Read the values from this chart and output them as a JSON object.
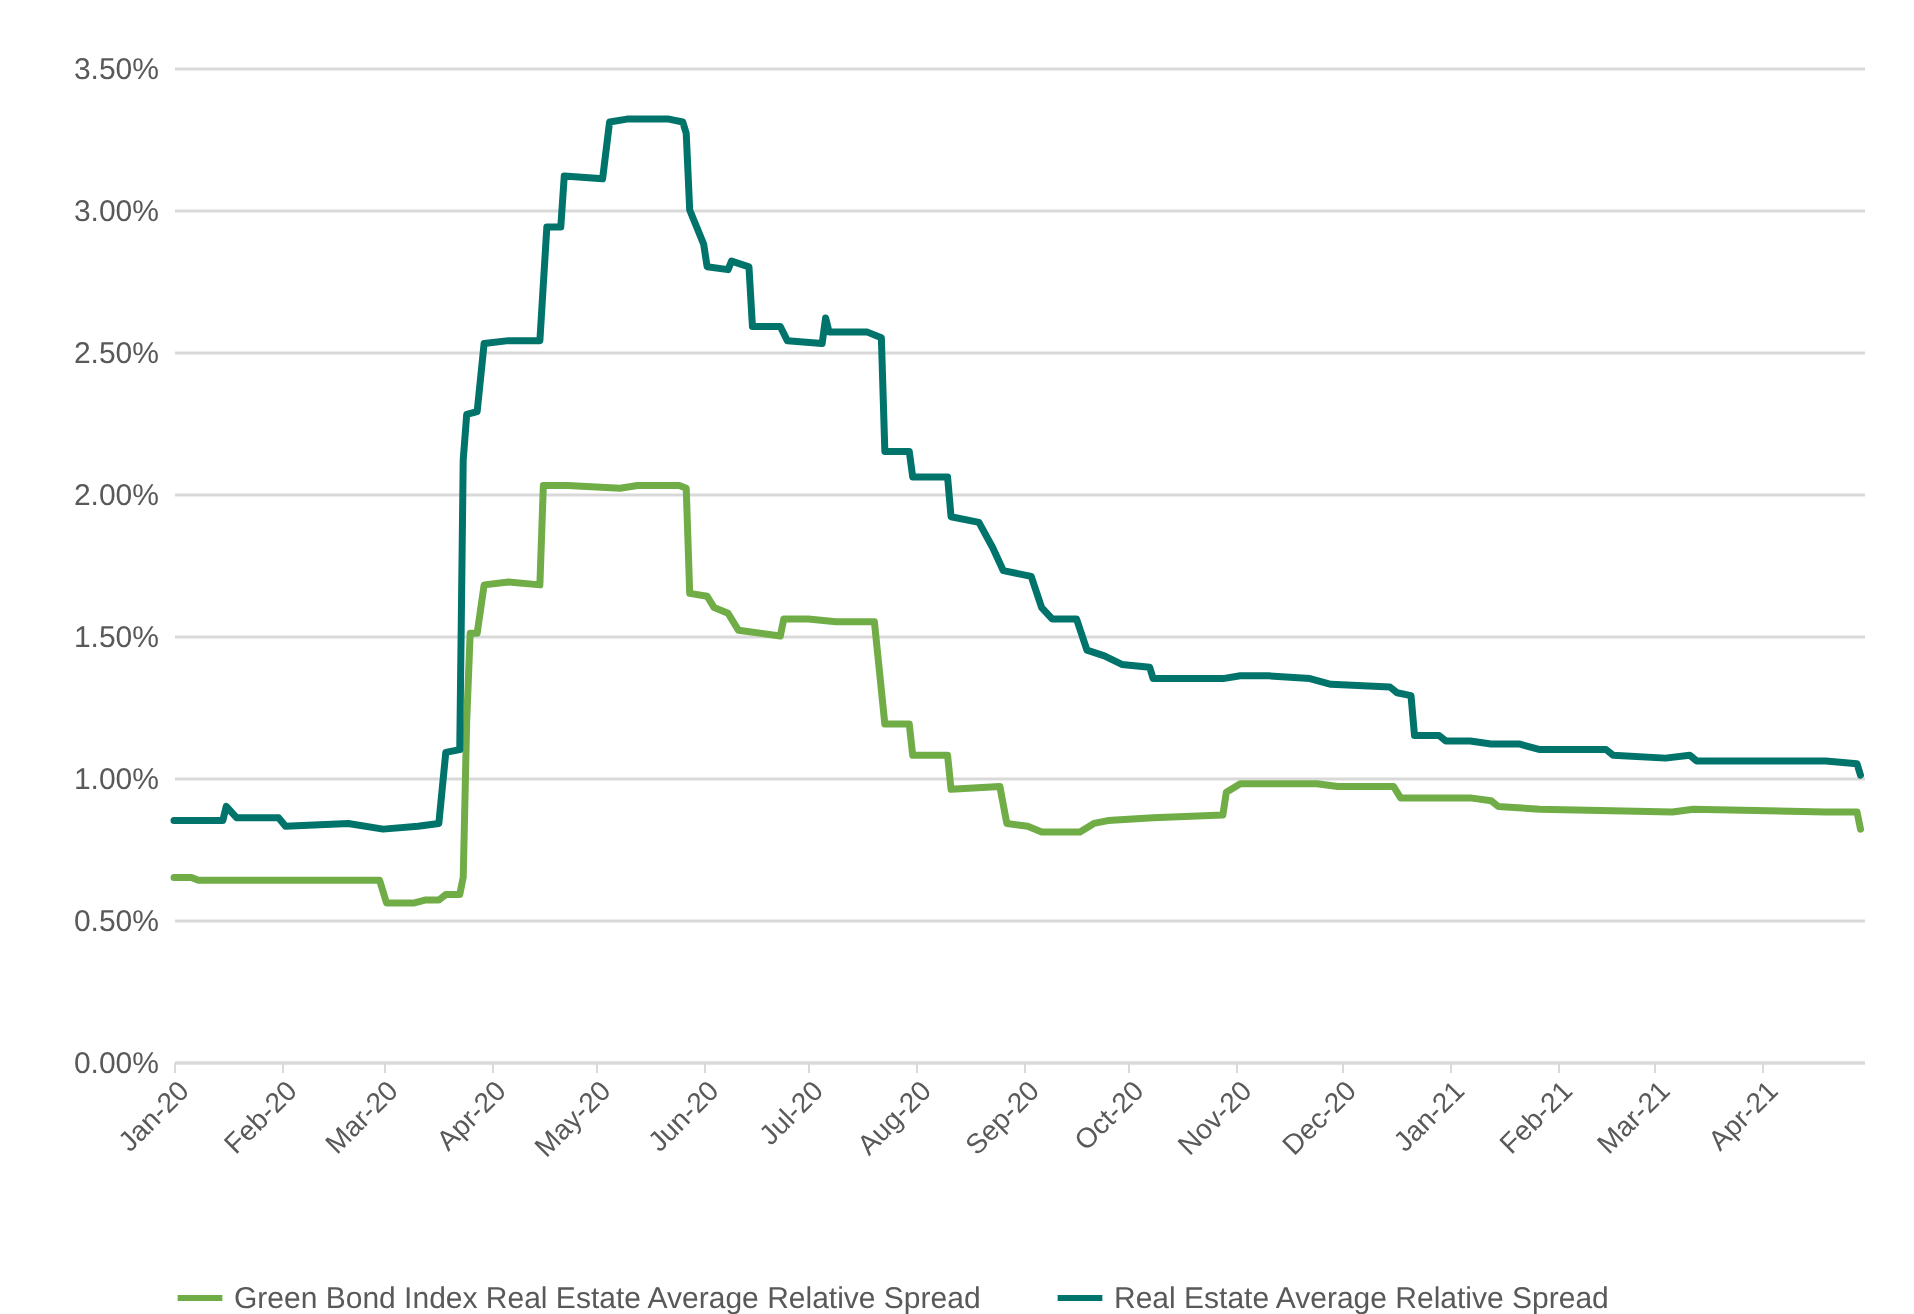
{
  "chart_data": {
    "type": "line",
    "xlim": [
      "2020-01-01",
      "2021-04-30"
    ],
    "xticks": [
      {
        "value": "2020-01-01",
        "label": "Jan-20"
      },
      {
        "value": "2020-02-01",
        "label": "Feb-20"
      },
      {
        "value": "2020-03-01",
        "label": "Mar-20"
      },
      {
        "value": "2020-04-01",
        "label": "Apr-20"
      },
      {
        "value": "2020-05-01",
        "label": "May-20"
      },
      {
        "value": "2020-06-01",
        "label": "Jun-20"
      },
      {
        "value": "2020-07-01",
        "label": "Jul-20"
      },
      {
        "value": "2020-08-01",
        "label": "Aug-20"
      },
      {
        "value": "2020-09-01",
        "label": "Sep-20"
      },
      {
        "value": "2020-10-01",
        "label": "Oct-20"
      },
      {
        "value": "2020-11-01",
        "label": "Nov-20"
      },
      {
        "value": "2020-12-01",
        "label": "Dec-20"
      },
      {
        "value": "2021-01-01",
        "label": "Jan-21"
      },
      {
        "value": "2021-02-01",
        "label": "Feb-21"
      },
      {
        "value": "2021-03-01",
        "label": "Mar-21"
      },
      {
        "value": "2021-04-01",
        "label": "Apr-21"
      }
    ],
    "ylim": [
      0,
      3.5
    ],
    "yticks": [
      {
        "value": 0,
        "label": "0.00%"
      },
      {
        "value": 0.5,
        "label": "0.50%"
      },
      {
        "value": 1,
        "label": "1.00%"
      },
      {
        "value": 1.5,
        "label": "1.50%"
      },
      {
        "value": 2,
        "label": "2.00%"
      },
      {
        "value": 2.5,
        "label": "2.50%"
      },
      {
        "value": 3,
        "label": "3.00%"
      },
      {
        "value": 3.5,
        "label": "3.50%"
      }
    ],
    "grid": "y",
    "legend": "bottom",
    "series": [
      {
        "name": "Green Bond Index Real Estate Average Relative Spread",
        "color": "#70ad47",
        "x": [
          "2020-01-01",
          "2020-01-06",
          "2020-01-08",
          "2020-02-29",
          "2020-03-02",
          "2020-03-10",
          "2020-03-13",
          "2020-03-17",
          "2020-03-19",
          "2020-03-23",
          "2020-03-24",
          "2020-03-25",
          "2020-03-26",
          "2020-03-28",
          "2020-03-30",
          "2020-04-06",
          "2020-04-15",
          "2020-04-16",
          "2020-04-23",
          "2020-05-08",
          "2020-05-13",
          "2020-05-25",
          "2020-05-27",
          "2020-05-28",
          "2020-06-02",
          "2020-06-04",
          "2020-06-08",
          "2020-06-11",
          "2020-06-23",
          "2020-06-24",
          "2020-07-01",
          "2020-07-09",
          "2020-07-20",
          "2020-07-23",
          "2020-07-30",
          "2020-07-31",
          "2020-08-10",
          "2020-08-11",
          "2020-08-25",
          "2020-08-27",
          "2020-09-02",
          "2020-09-06",
          "2020-09-17",
          "2020-09-21",
          "2020-09-25",
          "2020-10-08",
          "2020-10-28",
          "2020-10-29",
          "2020-11-02",
          "2020-11-24",
          "2020-11-30",
          "2020-12-16",
          "2020-12-18",
          "2021-01-07",
          "2021-01-13",
          "2021-01-15",
          "2021-01-27",
          "2021-03-06",
          "2021-03-12",
          "2021-04-19",
          "2021-04-28",
          "2021-04-29"
        ],
        "values": [
          0.65,
          0.65,
          0.64,
          0.64,
          0.56,
          0.56,
          0.57,
          0.57,
          0.59,
          0.59,
          0.65,
          1.2,
          1.51,
          1.51,
          1.68,
          1.69,
          1.68,
          2.03,
          2.03,
          2.02,
          2.03,
          2.03,
          2.02,
          1.65,
          1.64,
          1.6,
          1.58,
          1.52,
          1.5,
          1.56,
          1.56,
          1.55,
          1.55,
          1.19,
          1.19,
          1.08,
          1.08,
          0.96,
          0.97,
          0.84,
          0.83,
          0.81,
          0.81,
          0.84,
          0.85,
          0.86,
          0.87,
          0.95,
          0.98,
          0.98,
          0.97,
          0.97,
          0.93,
          0.93,
          0.92,
          0.9,
          0.89,
          0.88,
          0.89,
          0.88,
          0.88,
          0.82
        ]
      },
      {
        "name": "Real Estate Average Relative Spread",
        "color": "#00736b",
        "x": [
          "2020-01-01",
          "2020-01-15",
          "2020-01-16",
          "2020-01-19",
          "2020-01-31",
          "2020-02-02",
          "2020-02-20",
          "2020-03-01",
          "2020-03-11",
          "2020-03-17",
          "2020-03-19",
          "2020-03-23",
          "2020-03-24",
          "2020-03-25",
          "2020-03-28",
          "2020-03-30",
          "2020-04-06",
          "2020-04-15",
          "2020-04-17",
          "2020-04-21",
          "2020-04-22",
          "2020-05-03",
          "2020-05-05",
          "2020-05-10",
          "2020-05-22",
          "2020-05-26",
          "2020-05-27",
          "2020-05-28",
          "2020-06-01",
          "2020-06-02",
          "2020-06-08",
          "2020-06-09",
          "2020-06-14",
          "2020-06-15",
          "2020-06-23",
          "2020-06-25",
          "2020-07-05",
          "2020-07-06",
          "2020-07-07",
          "2020-07-18",
          "2020-07-22",
          "2020-07-23",
          "2020-07-30",
          "2020-07-31",
          "2020-08-10",
          "2020-08-11",
          "2020-08-19",
          "2020-08-23",
          "2020-08-26",
          "2020-09-03",
          "2020-09-06",
          "2020-09-09",
          "2020-09-16",
          "2020-09-19",
          "2020-09-24",
          "2020-09-29",
          "2020-10-07",
          "2020-10-08",
          "2020-10-28",
          "2020-11-02",
          "2020-11-10",
          "2020-11-22",
          "2020-11-28",
          "2020-12-15",
          "2020-12-17",
          "2020-12-21",
          "2020-12-22",
          "2020-12-29",
          "2020-12-31",
          "2021-01-07",
          "2021-01-13",
          "2021-01-21",
          "2021-01-27",
          "2021-02-15",
          "2021-02-17",
          "2021-03-04",
          "2021-03-11",
          "2021-03-13",
          "2021-04-01",
          "2021-04-19",
          "2021-04-28",
          "2021-04-29"
        ],
        "values": [
          0.85,
          0.85,
          0.9,
          0.86,
          0.86,
          0.83,
          0.84,
          0.82,
          0.83,
          0.84,
          1.09,
          1.1,
          2.12,
          2.28,
          2.29,
          2.53,
          2.54,
          2.54,
          2.94,
          2.94,
          3.12,
          3.11,
          3.31,
          3.32,
          3.32,
          3.31,
          3.27,
          3.0,
          2.88,
          2.8,
          2.79,
          2.82,
          2.8,
          2.59,
          2.59,
          2.54,
          2.53,
          2.62,
          2.57,
          2.57,
          2.55,
          2.15,
          2.15,
          2.06,
          2.06,
          1.92,
          1.9,
          1.81,
          1.73,
          1.71,
          1.6,
          1.56,
          1.56,
          1.45,
          1.43,
          1.4,
          1.39,
          1.35,
          1.35,
          1.36,
          1.36,
          1.35,
          1.33,
          1.32,
          1.3,
          1.29,
          1.15,
          1.15,
          1.13,
          1.13,
          1.12,
          1.12,
          1.1,
          1.1,
          1.08,
          1.07,
          1.08,
          1.06,
          1.06,
          1.06,
          1.05,
          1.01
        ]
      }
    ]
  }
}
